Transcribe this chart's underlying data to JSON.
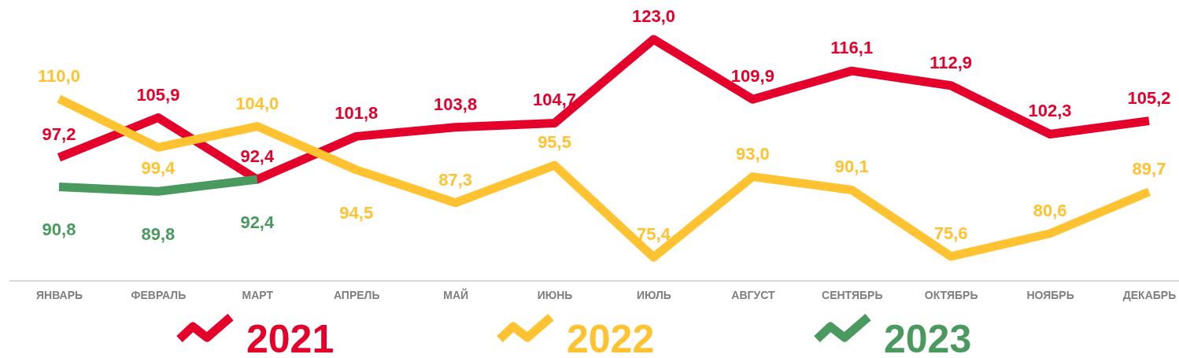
{
  "chart_data": {
    "type": "line",
    "categories": [
      "ЯНВАРЬ",
      "ФЕВРАЛЬ",
      "МАРТ",
      "АПРЕЛЬ",
      "МАЙ",
      "ИЮНЬ",
      "ИЮЛЬ",
      "АВГУСТ",
      "СЕНТЯБРЬ",
      "ОКТЯБРЬ",
      "НОЯБРЬ",
      "ДЕКАБРЬ"
    ],
    "series": [
      {
        "name": "2021",
        "color": "#e4002b",
        "values": [
          97.2,
          105.9,
          92.4,
          101.8,
          103.8,
          104.7,
          123.0,
          109.9,
          116.1,
          112.9,
          102.3,
          105.2
        ],
        "value_labels": [
          "97,2",
          "105,9",
          "92,4",
          "101,8",
          "103,8",
          "104,7",
          "123,0",
          "109,9",
          "116,1",
          "112,9",
          "102,3",
          "105,2"
        ]
      },
      {
        "name": "2022",
        "color": "#ffc230",
        "values": [
          110.0,
          99.4,
          104.0,
          94.5,
          87.3,
          95.5,
          75.4,
          93.0,
          90.1,
          75.6,
          80.6,
          89.7
        ],
        "value_labels": [
          "110,0",
          "99,4",
          "104,0",
          "94,5",
          "87,3",
          "95,5",
          "75,4",
          "93,0",
          "90,1",
          "75,6",
          "80,6",
          "89,7"
        ]
      },
      {
        "name": "2023",
        "color": "#4a9a5f",
        "values": [
          90.8,
          89.8,
          92.4,
          null,
          null,
          null,
          null,
          null,
          null,
          null,
          null,
          null
        ],
        "value_labels": [
          "90,8",
          "89,8",
          "92,4",
          null,
          null,
          null,
          null,
          null,
          null,
          null,
          null,
          null
        ]
      }
    ],
    "tick_labels": "x",
    "legend": "bottom",
    "marker": "none",
    "line_style": "solid"
  }
}
